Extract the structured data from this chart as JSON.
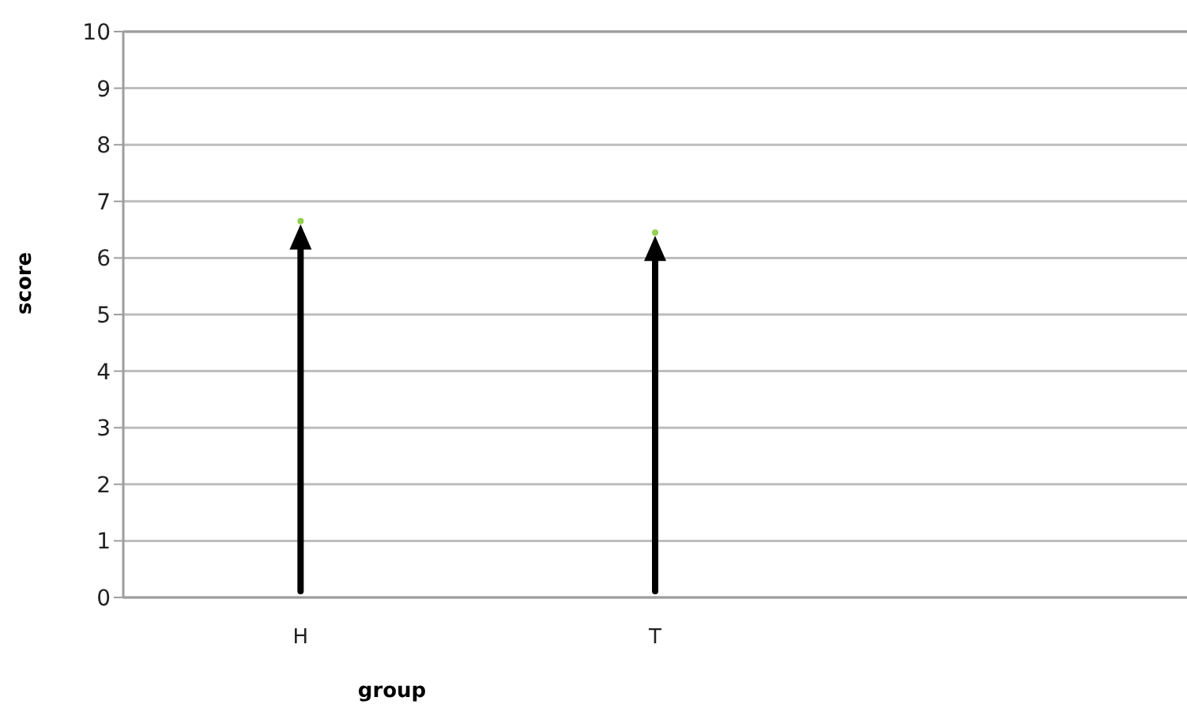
{
  "chart_data": {
    "type": "scatter",
    "xlabel": "group",
    "ylabel": "score",
    "categories": [
      "H",
      "T",
      null
    ],
    "series": [
      {
        "color": "#92d050",
        "values": [
          6.65,
          6.45,
          null
        ]
      }
    ],
    "ylim": [
      0,
      10
    ],
    "yticks": [
      0,
      1,
      2,
      3,
      4,
      5,
      6,
      7,
      8,
      9,
      10
    ],
    "grid": "y",
    "marker": "circle"
  }
}
